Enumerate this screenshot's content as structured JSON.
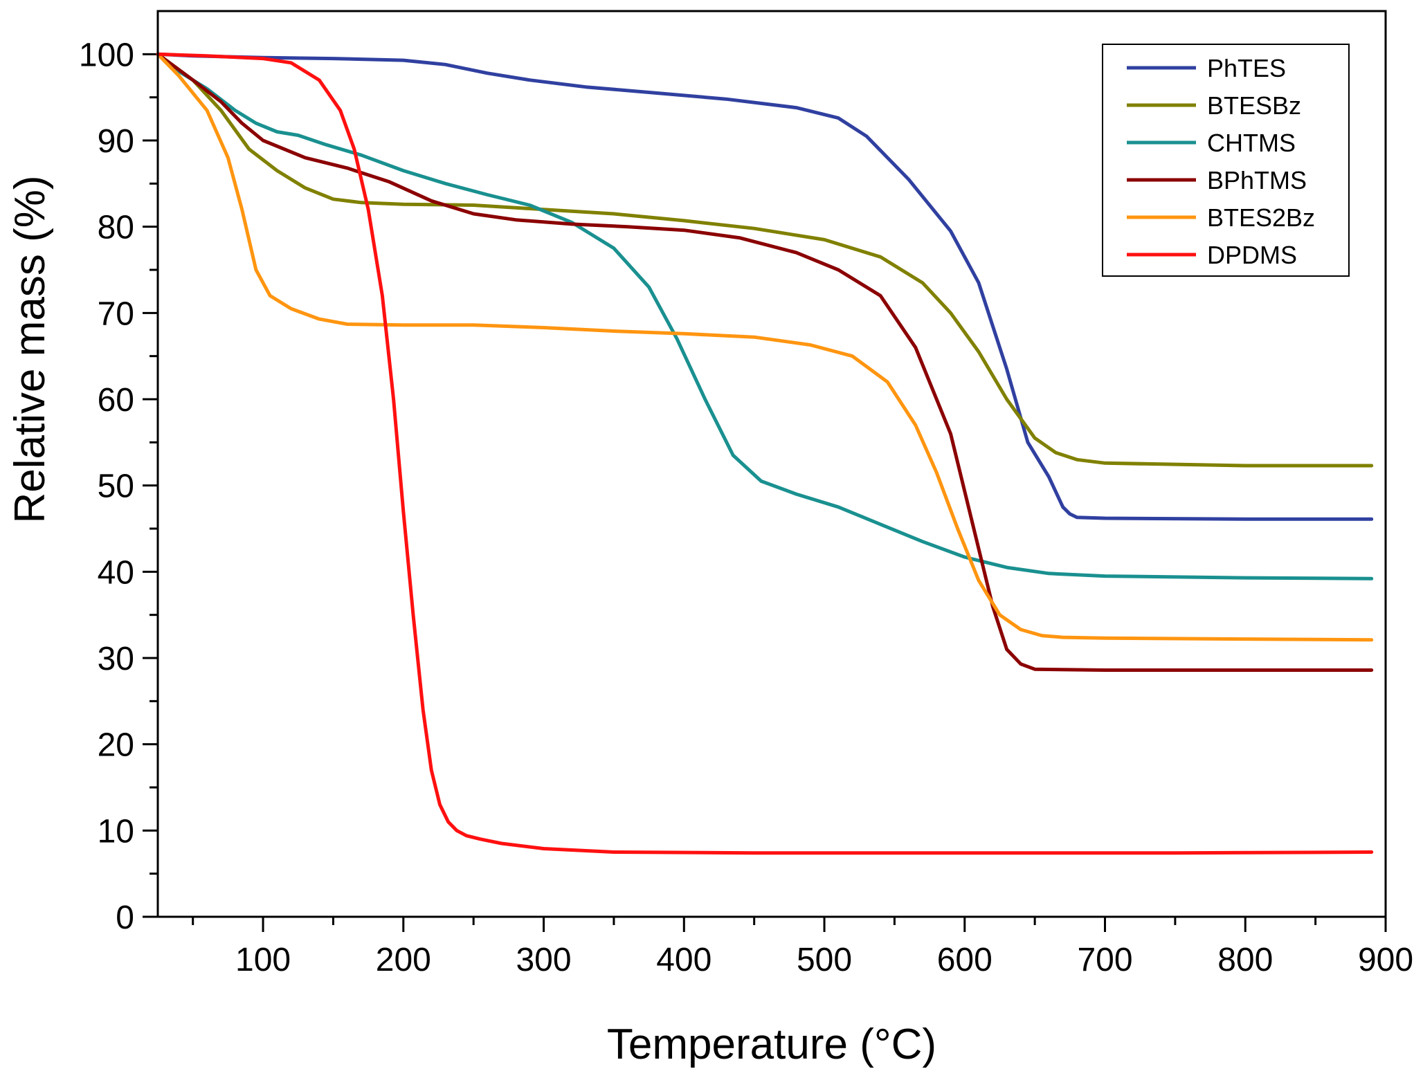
{
  "chart_data": {
    "type": "line",
    "title": "",
    "xlabel": "Temperature (°C)",
    "ylabel": "Relative mass (%)",
    "xlim": [
      25,
      900
    ],
    "ylim": [
      0,
      105
    ],
    "x_ticks": [
      100,
      200,
      300,
      400,
      500,
      600,
      700,
      800,
      900
    ],
    "x_tick_labels": [
      "100",
      "200",
      "300",
      "400",
      "500",
      "600",
      "700",
      "800",
      "900"
    ],
    "y_ticks": [
      0,
      10,
      20,
      30,
      40,
      50,
      60,
      70,
      80,
      90,
      100
    ],
    "y_tick_labels": [
      "0",
      "10",
      "20",
      "30",
      "40",
      "50",
      "60",
      "70",
      "80",
      "90",
      "100"
    ],
    "grid": false,
    "legend_position": "top-right",
    "series": [
      {
        "name": "PhTES",
        "color": "#3040a0",
        "x": [
          25,
          50,
          100,
          150,
          200,
          230,
          260,
          290,
          330,
          380,
          430,
          480,
          510,
          530,
          560,
          590,
          610,
          630,
          645,
          660,
          670,
          675,
          680,
          700,
          800,
          890
        ],
        "y": [
          100,
          99.8,
          99.6,
          99.5,
          99.3,
          98.8,
          97.8,
          97.0,
          96.2,
          95.5,
          94.8,
          93.8,
          92.6,
          90.5,
          85.5,
          79.5,
          73.5,
          63.5,
          55.0,
          51.0,
          47.5,
          46.7,
          46.3,
          46.2,
          46.1,
          46.1
        ]
      },
      {
        "name": "BTESBz",
        "color": "#808000",
        "x": [
          25,
          50,
          70,
          90,
          110,
          130,
          150,
          170,
          200,
          250,
          300,
          350,
          400,
          450,
          500,
          540,
          570,
          590,
          610,
          630,
          650,
          665,
          680,
          700,
          800,
          890
        ],
        "y": [
          100,
          97.0,
          93.5,
          89.0,
          86.5,
          84.5,
          83.2,
          82.8,
          82.6,
          82.5,
          82.0,
          81.5,
          80.7,
          79.8,
          78.5,
          76.5,
          73.5,
          70.0,
          65.5,
          60.0,
          55.5,
          53.8,
          53.0,
          52.6,
          52.3,
          52.3
        ]
      },
      {
        "name": "CHTMS",
        "color": "#1a9090",
        "x": [
          25,
          40,
          60,
          80,
          95,
          110,
          125,
          145,
          170,
          200,
          230,
          260,
          290,
          320,
          350,
          375,
          395,
          415,
          435,
          455,
          480,
          510,
          540,
          570,
          600,
          630,
          660,
          700,
          800,
          890
        ],
        "y": [
          100,
          98.0,
          96.0,
          93.5,
          92.0,
          91.0,
          90.6,
          89.5,
          88.3,
          86.5,
          85.0,
          83.7,
          82.5,
          80.5,
          77.5,
          73.0,
          67.0,
          60.0,
          53.5,
          50.5,
          49.0,
          47.5,
          45.5,
          43.5,
          41.7,
          40.5,
          39.8,
          39.5,
          39.3,
          39.2
        ]
      },
      {
        "name": "BPhTMS",
        "color": "#8b0000",
        "x": [
          25,
          50,
          70,
          85,
          100,
          130,
          160,
          190,
          220,
          250,
          280,
          320,
          360,
          400,
          440,
          480,
          510,
          540,
          565,
          590,
          605,
          620,
          630,
          640,
          650,
          700,
          800,
          890
        ],
        "y": [
          100,
          97.0,
          94.5,
          92.0,
          90.0,
          88.0,
          86.8,
          85.2,
          83.0,
          81.5,
          80.8,
          80.3,
          80.0,
          79.6,
          78.7,
          77.0,
          75.0,
          72.0,
          66.0,
          56.0,
          46.0,
          36.0,
          31.0,
          29.3,
          28.7,
          28.6,
          28.6,
          28.6
        ]
      },
      {
        "name": "BTES2Bz",
        "color": "#ff9510",
        "x": [
          25,
          40,
          60,
          75,
          85,
          95,
          105,
          120,
          140,
          160,
          200,
          250,
          300,
          350,
          400,
          450,
          490,
          520,
          545,
          565,
          580,
          595,
          610,
          625,
          640,
          655,
          670,
          700,
          800,
          890
        ],
        "y": [
          100,
          97.5,
          93.5,
          88.0,
          82.0,
          75.0,
          72.0,
          70.5,
          69.3,
          68.7,
          68.6,
          68.6,
          68.3,
          67.9,
          67.6,
          67.2,
          66.3,
          65.0,
          62.0,
          57.0,
          51.5,
          45.0,
          39.0,
          35.0,
          33.3,
          32.6,
          32.4,
          32.3,
          32.2,
          32.1
        ]
      },
      {
        "name": "DPDMS",
        "color": "#ff1010",
        "x": [
          25,
          60,
          100,
          120,
          140,
          155,
          165,
          175,
          185,
          193,
          200,
          207,
          214,
          220,
          226,
          232,
          238,
          245,
          255,
          270,
          300,
          350,
          450,
          600,
          750,
          890
        ],
        "y": [
          100,
          99.8,
          99.5,
          99.0,
          97.0,
          93.5,
          89.0,
          82.0,
          72.0,
          60.0,
          47.0,
          35.0,
          24.0,
          17.0,
          13.0,
          11.0,
          10.0,
          9.4,
          9.0,
          8.5,
          7.9,
          7.5,
          7.4,
          7.4,
          7.4,
          7.5
        ]
      }
    ]
  }
}
